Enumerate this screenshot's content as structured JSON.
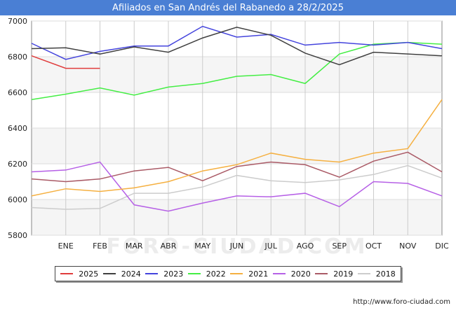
{
  "header": {
    "title": "Afiliados en San Andrés del Rabanedo a 28/2/2025"
  },
  "footer": {
    "source": "http://www.foro-ciudad.com"
  },
  "watermark": "FORO-CIUDAD.COM",
  "chart_data": {
    "type": "line",
    "title": "Afiliados en San Andrés del Rabanedo a 28/2/2025",
    "xlabel": "",
    "ylabel": "",
    "categories": [
      "",
      "ENE",
      "FEB",
      "MAR",
      "ABR",
      "MAY",
      "JUN",
      "JUL",
      "AGO",
      "SEP",
      "OCT",
      "NOV",
      "DIC"
    ],
    "ylim": [
      5800,
      7000
    ],
    "yticks": [
      5800,
      6000,
      6200,
      6400,
      6600,
      6800,
      7000
    ],
    "grid": true,
    "legend_position": "bottom",
    "series": [
      {
        "name": "2025",
        "color": "#e03c3c",
        "values": [
          6805,
          6735,
          6735,
          null,
          null,
          null,
          null,
          null,
          null,
          null,
          null,
          null,
          null
        ]
      },
      {
        "name": "2024",
        "color": "#404040",
        "values": [
          6845,
          6850,
          6815,
          6855,
          6825,
          6905,
          6965,
          6920,
          6820,
          6755,
          6825,
          6815,
          6805
        ]
      },
      {
        "name": "2023",
        "color": "#4444dd",
        "values": [
          6875,
          6785,
          6830,
          6860,
          6860,
          6970,
          6910,
          6925,
          6865,
          6880,
          6865,
          6880,
          6845
        ]
      },
      {
        "name": "2022",
        "color": "#44ee44",
        "values": [
          6560,
          6590,
          6625,
          6585,
          6630,
          6650,
          6690,
          6700,
          6650,
          6815,
          6870,
          6880,
          6870
        ]
      },
      {
        "name": "2021",
        "color": "#f5b041",
        "values": [
          6020,
          6060,
          6045,
          6065,
          6100,
          6160,
          6195,
          6260,
          6225,
          6210,
          6260,
          6285,
          6560
        ]
      },
      {
        "name": "2020",
        "color": "#b660e6",
        "values": [
          6155,
          6165,
          6210,
          5970,
          5935,
          5980,
          6020,
          6015,
          6035,
          5960,
          6100,
          6090,
          6020
        ]
      },
      {
        "name": "2019",
        "color": "#aa5a66",
        "values": [
          6115,
          6100,
          6115,
          6160,
          6180,
          6105,
          6185,
          6210,
          6195,
          6125,
          6215,
          6265,
          6155
        ]
      },
      {
        "name": "2018",
        "color": "#cccccc",
        "values": [
          5955,
          5945,
          5950,
          6035,
          6035,
          6070,
          6135,
          6105,
          6095,
          6110,
          6140,
          6190,
          6120
        ]
      }
    ]
  }
}
